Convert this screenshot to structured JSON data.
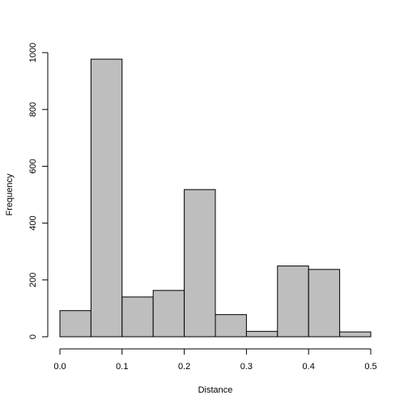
{
  "chart_data": {
    "type": "bar",
    "title": "",
    "xlabel": "Distance",
    "ylabel": "Frequency",
    "bin_edges": [
      0.0,
      0.05,
      0.1,
      0.15,
      0.2,
      0.25,
      0.3,
      0.35,
      0.4,
      0.45,
      0.5
    ],
    "values": [
      92,
      977,
      140,
      163,
      518,
      78,
      19,
      249,
      237,
      17
    ],
    "xlim": [
      0,
      0.5
    ],
    "ylim": [
      0,
      1000
    ],
    "x_ticks": [
      0.0,
      0.1,
      0.2,
      0.3,
      0.4,
      0.5
    ],
    "x_tick_labels": [
      "0.0",
      "0.1",
      "0.2",
      "0.3",
      "0.4",
      "0.5"
    ],
    "y_ticks": [
      0,
      200,
      400,
      600,
      800,
      1000
    ],
    "y_tick_labels": [
      "0",
      "200",
      "400",
      "600",
      "800",
      "1000"
    ],
    "bar_color": "#bebebe",
    "grid": false
  }
}
